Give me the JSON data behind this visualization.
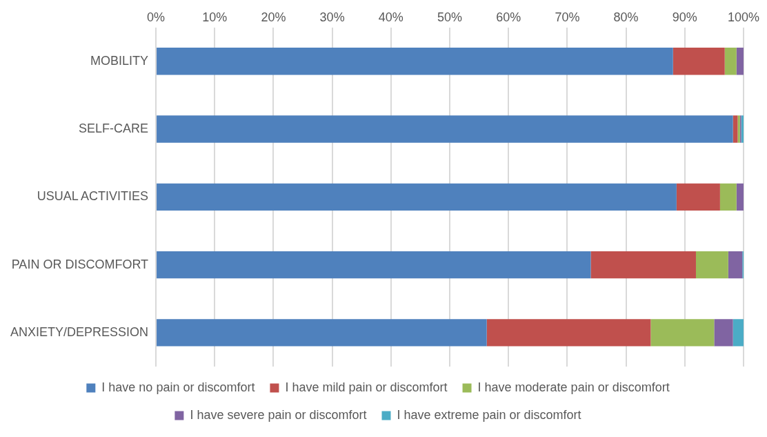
{
  "chart_data": {
    "type": "bar",
    "orientation": "horizontal",
    "stacked": true,
    "categories": [
      "MOBILITY",
      "SELF-CARE",
      "USUAL ACTIVITIES",
      "PAIN OR DISCOMFORT",
      "ANXIETY/DEPRESSION"
    ],
    "series": [
      {
        "name": "I have no pain or discomfort",
        "color": "#4f81bd",
        "values": [
          88.0,
          98.2,
          88.6,
          74.0,
          56.3
        ]
      },
      {
        "name": "I have mild pain or discomfort",
        "color": "#c0504d",
        "values": [
          8.8,
          0.8,
          7.4,
          17.9,
          27.9
        ]
      },
      {
        "name": "I have moderate pain or discomfort",
        "color": "#9bbb59",
        "values": [
          2.0,
          0.4,
          2.8,
          5.5,
          10.8
        ]
      },
      {
        "name": "I have severe pain or discomfort",
        "color": "#8064a2",
        "values": [
          1.2,
          0.2,
          1.2,
          2.4,
          3.2
        ]
      },
      {
        "name": "I have extreme pain or discomfort",
        "color": "#4bacc6",
        "values": [
          0,
          0.4,
          0,
          0.2,
          1.8
        ]
      }
    ],
    "xlim": [
      0,
      100
    ],
    "xticks": [
      {
        "value": 0,
        "label": "0%"
      },
      {
        "value": 10,
        "label": "10%"
      },
      {
        "value": 20,
        "label": "20%"
      },
      {
        "value": 30,
        "label": "30%"
      },
      {
        "value": 40,
        "label": "40%"
      },
      {
        "value": 50,
        "label": "50%"
      },
      {
        "value": 60,
        "label": "60%"
      },
      {
        "value": 70,
        "label": "70%"
      },
      {
        "value": 80,
        "label": "80%"
      },
      {
        "value": 90,
        "label": "90%"
      },
      {
        "value": 100,
        "label": "100%"
      }
    ],
    "grid": "x",
    "legend": "bottom"
  }
}
